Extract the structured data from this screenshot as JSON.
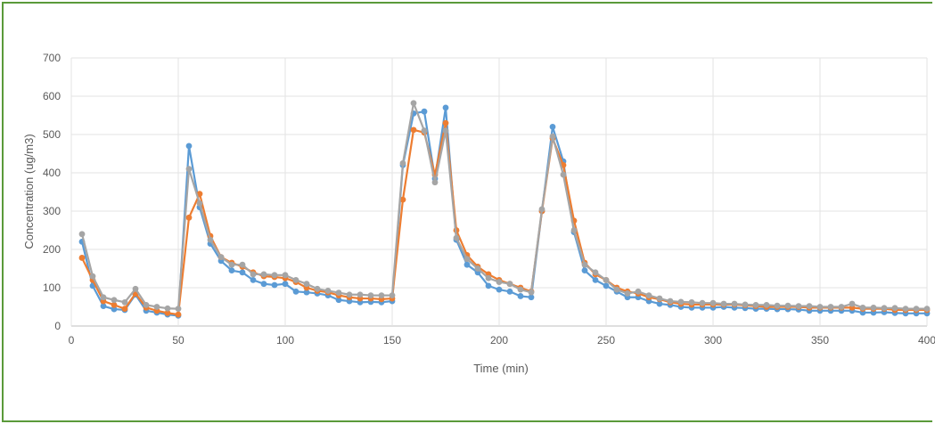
{
  "chart_data": {
    "type": "line",
    "title": "",
    "xlabel": "Time (min)",
    "ylabel": "Concentration (ug/m3)",
    "xlim": [
      0,
      400
    ],
    "ylim": [
      0,
      700
    ],
    "xticks": [
      0,
      50,
      100,
      150,
      200,
      250,
      300,
      350,
      400
    ],
    "yticks": [
      0,
      100,
      200,
      300,
      400,
      500,
      600,
      700
    ],
    "grid": true,
    "legend": "none",
    "colors": [
      "#5b9bd5",
      "#ed7d31",
      "#a5a5a5"
    ],
    "x": [
      5,
      10,
      15,
      20,
      25,
      30,
      35,
      40,
      45,
      50,
      55,
      60,
      65,
      70,
      75,
      80,
      85,
      90,
      95,
      100,
      105,
      110,
      115,
      120,
      125,
      130,
      135,
      140,
      145,
      150,
      155,
      160,
      165,
      170,
      175,
      180,
      185,
      190,
      195,
      200,
      205,
      210,
      215,
      220,
      225,
      230,
      235,
      240,
      245,
      250,
      255,
      260,
      265,
      270,
      275,
      280,
      285,
      290,
      295,
      300,
      305,
      310,
      315,
      320,
      325,
      330,
      335,
      340,
      345,
      350,
      355,
      360,
      365,
      370,
      375,
      380,
      385,
      390,
      395,
      400
    ],
    "series": [
      {
        "values": [
          220,
          105,
          52,
          44,
          42,
          82,
          40,
          35,
          30,
          27,
          470,
          310,
          215,
          170,
          145,
          140,
          120,
          110,
          107,
          110,
          90,
          88,
          85,
          80,
          68,
          65,
          62,
          63,
          62,
          65,
          420,
          555,
          560,
          385,
          570,
          225,
          160,
          140,
          105,
          95,
          90,
          78,
          75,
          300,
          520,
          430,
          245,
          145,
          120,
          105,
          90,
          75,
          75,
          65,
          58,
          55,
          50,
          48,
          48,
          48,
          50,
          48,
          47,
          45,
          45,
          44,
          44,
          43,
          40,
          40,
          40,
          40,
          40,
          35,
          35,
          36,
          34,
          33,
          33,
          33
        ]
      },
      {
        "values": [
          178,
          120,
          65,
          55,
          45,
          85,
          48,
          40,
          34,
          30,
          283,
          345,
          235,
          180,
          165,
          155,
          140,
          130,
          128,
          125,
          115,
          100,
          92,
          88,
          80,
          75,
          72,
          72,
          70,
          72,
          330,
          512,
          505,
          395,
          530,
          250,
          185,
          155,
          135,
          120,
          110,
          100,
          90,
          300,
          490,
          420,
          275,
          165,
          135,
          120,
          100,
          90,
          85,
          75,
          70,
          62,
          58,
          56,
          56,
          56,
          56,
          56,
          54,
          52,
          50,
          50,
          50,
          50,
          48,
          48,
          48,
          48,
          48,
          45,
          45,
          45,
          42,
          42,
          42,
          42
        ]
      },
      {
        "values": [
          240,
          130,
          75,
          68,
          62,
          97,
          55,
          50,
          46,
          45,
          410,
          320,
          225,
          180,
          160,
          160,
          135,
          135,
          133,
          133,
          120,
          110,
          97,
          92,
          87,
          82,
          82,
          80,
          80,
          80,
          425,
          582,
          510,
          375,
          510,
          230,
          175,
          150,
          125,
          115,
          110,
          95,
          88,
          305,
          495,
          395,
          250,
          160,
          140,
          120,
          95,
          85,
          90,
          80,
          72,
          65,
          63,
          62,
          60,
          60,
          58,
          58,
          56,
          55,
          55,
          53,
          53,
          52,
          52,
          50,
          50,
          50,
          58,
          48,
          48,
          47,
          47,
          45,
          45,
          45
        ]
      }
    ]
  }
}
